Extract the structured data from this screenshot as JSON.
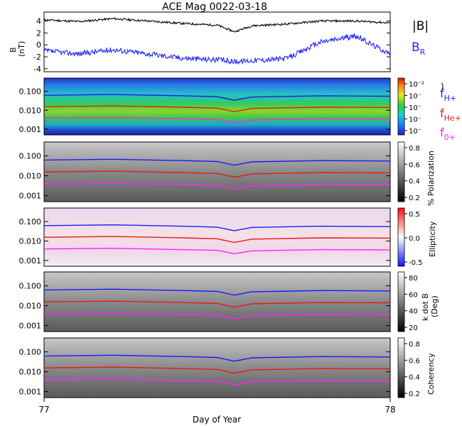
{
  "title": "ACE Mag 0022-03-18",
  "xaxis": {
    "label": "Day of Year",
    "ticks": [
      "77",
      "78"
    ],
    "range": [
      77,
      78
    ]
  },
  "legend": {
    "absB": "|B|",
    "bR_base": "B",
    "bR_sub": "R",
    "fH_base": "f",
    "fH_sub": "H+",
    "fHe_base": "f",
    "fHe_sub": "He+",
    "fO_base": "f",
    "fO_sub": "0+",
    "paren": ")"
  },
  "colors": {
    "absB": "#000000",
    "bR": "#2222ff",
    "fH": "#1a1aff",
    "fHe": "#e61919",
    "fO": "#ff22ff"
  },
  "chart_data": [
    {
      "type": "line",
      "panel": "magnetic-field",
      "ylabel": "B",
      "yunits": "(nT)",
      "ylim": [
        -4.5,
        5.5
      ],
      "yticks": [
        "4",
        "2",
        "0",
        "-2",
        "-4"
      ],
      "x": [
        77.0,
        77.1,
        77.2,
        77.3,
        77.4,
        77.5,
        77.55,
        77.6,
        77.7,
        77.8,
        77.9,
        78.0
      ],
      "series": [
        {
          "name": "|B|",
          "values": [
            4.2,
            3.9,
            4.4,
            4.0,
            3.6,
            3.3,
            2.2,
            3.2,
            3.5,
            4.0,
            4.0,
            3.7
          ]
        },
        {
          "name": "B_R",
          "values": [
            -1.0,
            -1.5,
            -0.8,
            -1.5,
            -2.2,
            -2.5,
            -2.8,
            -2.6,
            -2.3,
            0.5,
            1.5,
            -1.5
          ]
        }
      ]
    },
    {
      "type": "heatmap",
      "panel": "power-spectrum",
      "ylim_log": [
        0.0005,
        0.5
      ],
      "yticks": [
        "0.100",
        "0.010",
        "0.001"
      ],
      "colorbar_ticks": [
        "10⁻²",
        "10⁻",
        "10⁻",
        "10⁻",
        "10⁻"
      ],
      "colormap": "rainbow"
    },
    {
      "type": "heatmap",
      "panel": "polarization",
      "yticks": [
        "0.100",
        "0.010",
        "0.001"
      ],
      "colorbar_label": "% Polarization",
      "colorbar_ticks": [
        "0.8",
        "0.6",
        "0.4",
        "0.2"
      ],
      "colormap": "gray"
    },
    {
      "type": "heatmap",
      "panel": "ellipticity",
      "yticks": [
        "0.100",
        "0.010",
        "0.001"
      ],
      "colorbar_label": "Ellipticity",
      "colorbar_ticks": [
        "0.5",
        "0.0",
        "-0.5"
      ],
      "colormap": "blue-white-red"
    },
    {
      "type": "heatmap",
      "panel": "k-dot-b",
      "yticks": [
        "0.100",
        "0.010",
        "0.001"
      ],
      "colorbar_label": "k dot B",
      "colorbar_units": "(Deg)",
      "colorbar_ticks": [
        "80",
        "60",
        "40",
        "20"
      ],
      "colormap": "gray"
    },
    {
      "type": "heatmap",
      "panel": "coherency",
      "yticks": [
        "0.100",
        "0.010",
        "0.001"
      ],
      "colorbar_label": "Coherency",
      "colorbar_ticks": [
        "0.8",
        "0.6",
        "0.4",
        "0.2"
      ],
      "colormap": "gray"
    }
  ],
  "gyro_lines": {
    "x": [
      77.0,
      77.2,
      77.4,
      77.5,
      77.55,
      77.6,
      77.8,
      78.0
    ],
    "fH": [
      0.062,
      0.068,
      0.058,
      0.052,
      0.034,
      0.05,
      0.058,
      0.055
    ],
    "fHe": [
      0.0155,
      0.017,
      0.0145,
      0.013,
      0.0085,
      0.0125,
      0.0145,
      0.014
    ],
    "fO": [
      0.0039,
      0.0042,
      0.0036,
      0.0033,
      0.0022,
      0.0031,
      0.0036,
      0.0035
    ]
  }
}
